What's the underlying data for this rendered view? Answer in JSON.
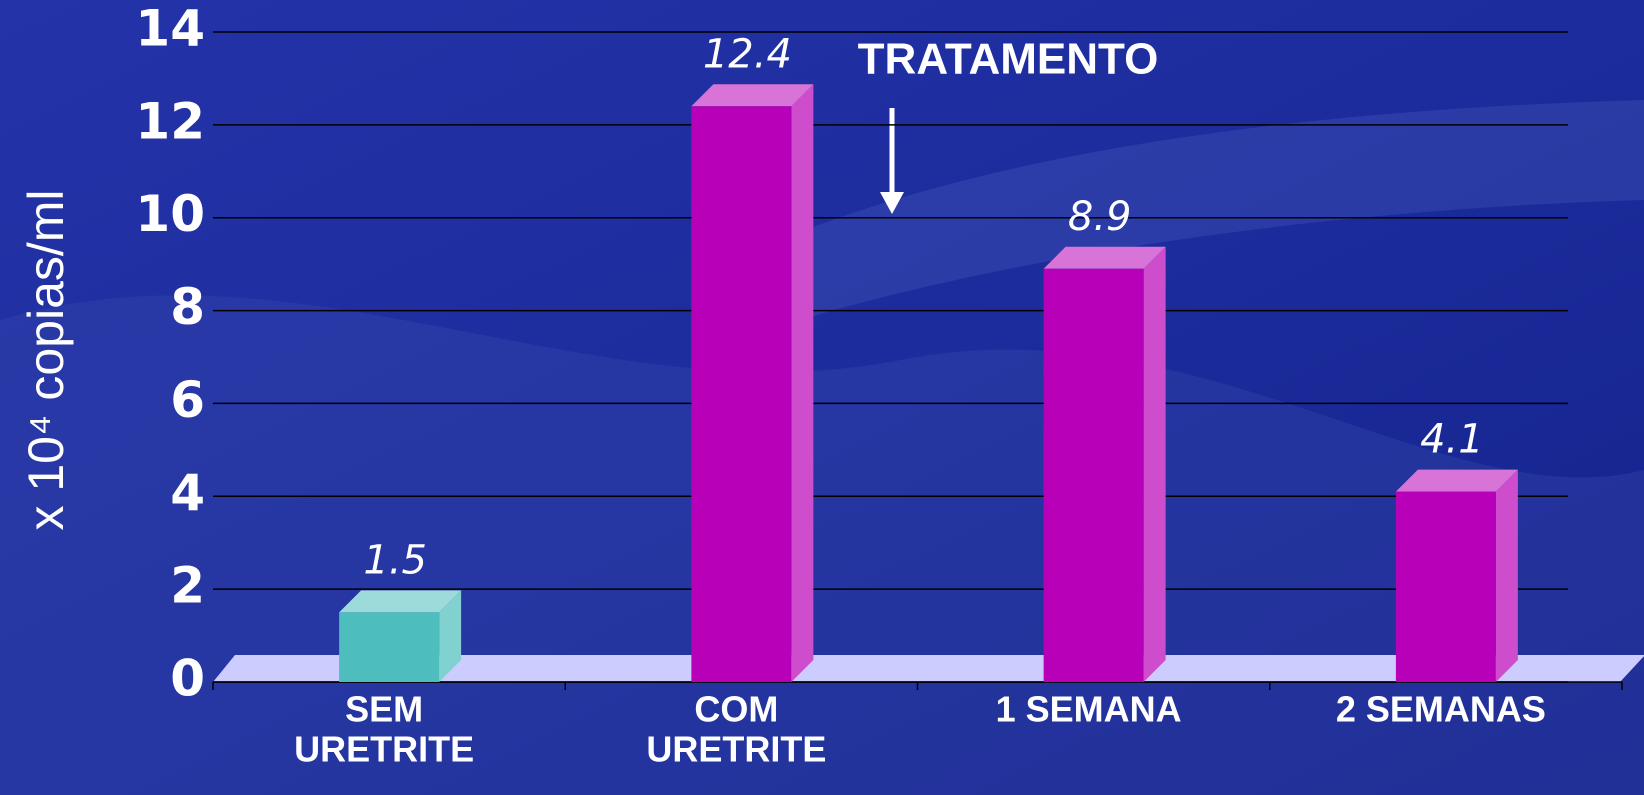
{
  "chart_data": {
    "type": "bar3d",
    "y_label": "x 10⁴ copias/ml",
    "annotation": "TRATAMENTO",
    "categories": [
      [
        "SEM",
        "URETRITE"
      ],
      [
        "COM",
        "URETRITE"
      ],
      [
        "1 SEMANA"
      ],
      [
        "2 SEMANAS"
      ]
    ],
    "values": [
      1.5,
      12.4,
      8.9,
      4.1
    ],
    "colors": [
      "#4dbdbd",
      "#b800b8",
      "#b800b8",
      "#b800b8"
    ],
    "ylim": [
      0,
      14
    ],
    "yticks": [
      0,
      2,
      4,
      6,
      8,
      10,
      12,
      14
    ],
    "grid": true
  }
}
